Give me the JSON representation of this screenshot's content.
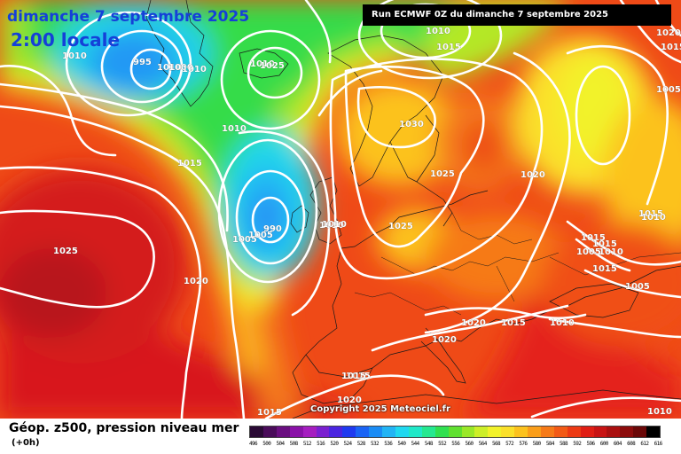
{
  "header": {
    "date_title": "dimanche 7 septembre 2025",
    "time_title": "2:00 locale",
    "run_info": "Run ECMWF 0Z du dimanche 7 septembre 2025"
  },
  "map": {
    "copyright": "Copyright 2025 Meteociel.fr",
    "pressure_labels": [
      {
        "text": "1010"
      },
      {
        "text": "995"
      },
      {
        "text": "1010"
      },
      {
        "text": "1000"
      },
      {
        "text": "1010"
      },
      {
        "text": "1010"
      },
      {
        "text": "1025"
      },
      {
        "text": "1010"
      },
      {
        "text": "1015"
      },
      {
        "text": "1015"
      },
      {
        "text": "1020"
      },
      {
        "text": "1015"
      },
      {
        "text": "1010"
      },
      {
        "text": "1030"
      },
      {
        "text": "1025"
      },
      {
        "text": "1020"
      },
      {
        "text": "1005"
      },
      {
        "text": "1005"
      },
      {
        "text": "1010"
      },
      {
        "text": "1025"
      },
      {
        "text": "1025"
      },
      {
        "text": "1020"
      },
      {
        "text": "1015"
      },
      {
        "text": "1015"
      },
      {
        "text": "1015"
      },
      {
        "text": "1010"
      },
      {
        "text": "1015"
      },
      {
        "text": "1005"
      },
      {
        "text": "1020"
      },
      {
        "text": "1015"
      },
      {
        "text": "1010"
      },
      {
        "text": "1020"
      },
      {
        "text": "1015"
      },
      {
        "text": "1020"
      },
      {
        "text": "1015"
      },
      {
        "text": "1010"
      },
      {
        "text": "1005"
      },
      {
        "text": "1005"
      },
      {
        "text": "1010"
      },
      {
        "text": "1010"
      },
      {
        "text": "1015"
      },
      {
        "text": "990"
      }
    ]
  },
  "legend": {
    "title": "Géop. z500, pression niveau mer",
    "subtitle": "(+0h)",
    "scale": [
      {
        "label": "496",
        "color": "#2a0a35"
      },
      {
        "label": "500",
        "color": "#4a0c5a"
      },
      {
        "label": "504",
        "color": "#6a0f80"
      },
      {
        "label": "508",
        "color": "#8a12a8"
      },
      {
        "label": "512",
        "color": "#a51ec0"
      },
      {
        "label": "516",
        "color": "#7a20d0"
      },
      {
        "label": "520",
        "color": "#4a25e0"
      },
      {
        "label": "524",
        "color": "#1f3af0"
      },
      {
        "label": "528",
        "color": "#1a64f5"
      },
      {
        "label": "532",
        "color": "#1a8cf5"
      },
      {
        "label": "536",
        "color": "#22b4f5"
      },
      {
        "label": "540",
        "color": "#20d8f0"
      },
      {
        "label": "544",
        "color": "#20e8c8"
      },
      {
        "label": "548",
        "color": "#25e890"
      },
      {
        "label": "552",
        "color": "#30e050"
      },
      {
        "label": "556",
        "color": "#60e030"
      },
      {
        "label": "560",
        "color": "#9ae828"
      },
      {
        "label": "564",
        "color": "#cdef28"
      },
      {
        "label": "568",
        "color": "#f2f22a"
      },
      {
        "label": "572",
        "color": "#fbe02a"
      },
      {
        "label": "576",
        "color": "#fcc21e"
      },
      {
        "label": "580",
        "color": "#fa9e1a"
      },
      {
        "label": "584",
        "color": "#f67a18"
      },
      {
        "label": "588",
        "color": "#f25a16"
      },
      {
        "label": "592",
        "color": "#ec3a14"
      },
      {
        "label": "596",
        "color": "#e01e14"
      },
      {
        "label": "600",
        "color": "#c81414"
      },
      {
        "label": "604",
        "color": "#aa1010"
      },
      {
        "label": "608",
        "color": "#8c0c0c"
      },
      {
        "label": "612",
        "color": "#6a0808"
      },
      {
        "label": "616",
        "color": "#000000"
      }
    ]
  }
}
